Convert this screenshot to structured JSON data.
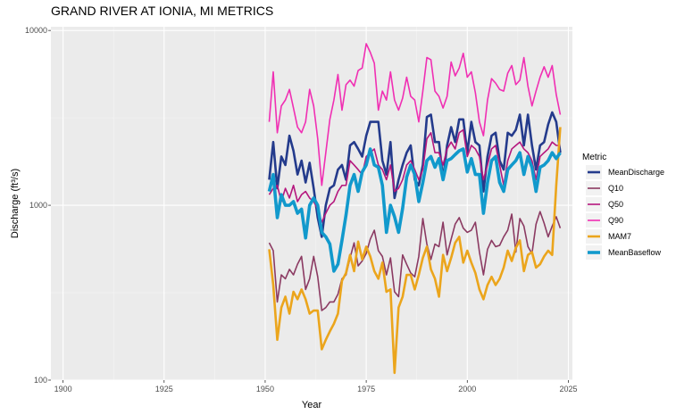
{
  "chart_data": {
    "type": "line",
    "title": "GRAND RIVER AT IONIA, MI  METRICS",
    "xlabel": "Year",
    "ylabel": "Discharge (ft³/s)",
    "xlim": [
      1897,
      2026
    ],
    "ylim": [
      100,
      10500
    ],
    "y_scale": "log",
    "grid": true,
    "legend_position": "right",
    "legend_title": "Metric",
    "x_ticks": [
      1900,
      1925,
      1950,
      1975,
      2000,
      2025
    ],
    "x_tick_labels": [
      "1900",
      "1925",
      "1950",
      "1975",
      "2000",
      "2025"
    ],
    "y_ticks": [
      100,
      1000,
      10000
    ],
    "y_tick_labels": [
      "100",
      "1000",
      "10000"
    ],
    "x_start": 1951,
    "series": [
      {
        "name": "MeanDischarge",
        "color": "#243b8c",
        "values": [
          1400,
          2300,
          1250,
          1900,
          1700,
          2500,
          2050,
          1500,
          1800,
          1350,
          1750,
          1250,
          850,
          660,
          1000,
          1250,
          1300,
          1600,
          1700,
          1400,
          2200,
          2300,
          2100,
          1900,
          2500,
          3000,
          3000,
          3000,
          1800,
          1500,
          2300,
          1100,
          1400,
          1700,
          2000,
          2200,
          1400,
          1300,
          1700,
          3200,
          3300,
          2300,
          2300,
          1400,
          2200,
          2800,
          2300,
          3100,
          3100,
          2000,
          3000,
          2300,
          2200,
          1200,
          1900,
          2500,
          2600,
          1800,
          1600,
          2600,
          2500,
          2700,
          3300,
          2200,
          3300,
          2200,
          1600,
          2200,
          2300,
          2900,
          3400,
          3000,
          2000
        ]
      },
      {
        "name": "Q10",
        "color": "#8b3a62",
        "values": [
          610,
          550,
          280,
          400,
          380,
          430,
          400,
          460,
          510,
          330,
          380,
          510,
          390,
          250,
          260,
          280,
          280,
          310,
          380,
          400,
          500,
          610,
          450,
          480,
          530,
          640,
          720,
          550,
          510,
          400,
          500,
          320,
          300,
          520,
          460,
          410,
          390,
          510,
          840,
          600,
          490,
          600,
          580,
          800,
          520,
          640,
          780,
          850,
          740,
          700,
          720,
          800,
          540,
          400,
          560,
          630,
          580,
          590,
          660,
          720,
          890,
          540,
          840,
          760,
          580,
          530,
          780,
          920,
          790,
          660,
          760,
          860,
          740
        ]
      },
      {
        "name": "Q50",
        "color": "#b5177e",
        "values": [
          1150,
          1250,
          1300,
          1050,
          1250,
          1100,
          1300,
          1050,
          1150,
          1200,
          1100,
          1050,
          950,
          800,
          900,
          1000,
          1050,
          1200,
          1300,
          1300,
          1800,
          1700,
          1600,
          1500,
          1900,
          2000,
          2100,
          1700,
          1600,
          1400,
          1700,
          1200,
          1250,
          1400,
          1700,
          1800,
          1600,
          1400,
          1600,
          2400,
          2600,
          2000,
          2000,
          1700,
          2100,
          2300,
          2100,
          2600,
          2700,
          1900,
          2200,
          2100,
          1900,
          1400,
          1700,
          2100,
          2200,
          1700,
          1300,
          1800,
          2100,
          2200,
          2300,
          2100,
          2000,
          1800,
          1400,
          1900,
          2000,
          2100,
          2300,
          2200,
          2200
        ]
      },
      {
        "name": "Q90",
        "color": "#f02fb3",
        "values": [
          3000,
          5800,
          2600,
          3700,
          4000,
          4600,
          3600,
          2800,
          2600,
          3000,
          4600,
          3700,
          2400,
          1300,
          2000,
          3100,
          4000,
          5600,
          3500,
          4900,
          5200,
          4800,
          5900,
          6100,
          8400,
          7500,
          6500,
          3500,
          4500,
          4000,
          5800,
          4000,
          3500,
          4100,
          5400,
          4200,
          4000,
          3000,
          4500,
          7000,
          6800,
          4500,
          4200,
          3600,
          4200,
          6600,
          5500,
          6100,
          7400,
          5400,
          5800,
          4400,
          3000,
          2500,
          4000,
          5300,
          5000,
          4600,
          4500,
          5700,
          6300,
          4900,
          5200,
          7000,
          4800,
          3700,
          4500,
          5400,
          6200,
          5400,
          6300,
          4300,
          3300
        ]
      },
      {
        "name": "MAM7",
        "color": "#eba51c",
        "values": [
          560,
          350,
          170,
          260,
          300,
          240,
          320,
          290,
          330,
          290,
          240,
          250,
          250,
          150,
          170,
          190,
          210,
          240,
          370,
          410,
          520,
          420,
          620,
          490,
          580,
          510,
          420,
          380,
          470,
          320,
          330,
          110,
          260,
          300,
          400,
          400,
          330,
          400,
          500,
          580,
          430,
          380,
          300,
          520,
          420,
          500,
          610,
          660,
          470,
          550,
          470,
          410,
          330,
          290,
          350,
          390,
          350,
          380,
          440,
          550,
          480,
          570,
          630,
          420,
          520,
          540,
          440,
          460,
          510,
          550,
          520,
          1300,
          2800
        ]
      },
      {
        "name": "MeanBaseflow",
        "color": "#1199cc",
        "values": [
          1200,
          1500,
          850,
          1150,
          1000,
          1000,
          1050,
          900,
          950,
          650,
          1000,
          1100,
          1000,
          700,
          660,
          600,
          420,
          460,
          630,
          880,
          1300,
          1500,
          1200,
          1550,
          1700,
          2100,
          1700,
          1650,
          1300,
          700,
          1000,
          860,
          700,
          960,
          1450,
          1700,
          1500,
          1050,
          1350,
          1800,
          1900,
          1650,
          1850,
          1400,
          1800,
          1850,
          1950,
          2050,
          2100,
          1550,
          1850,
          1500,
          1500,
          900,
          1350,
          1800,
          1900,
          1350,
          1200,
          1600,
          1700,
          1800,
          2000,
          1500,
          1900,
          1650,
          1200,
          1650,
          1700,
          1800,
          2000,
          1850,
          2000
        ]
      }
    ]
  }
}
